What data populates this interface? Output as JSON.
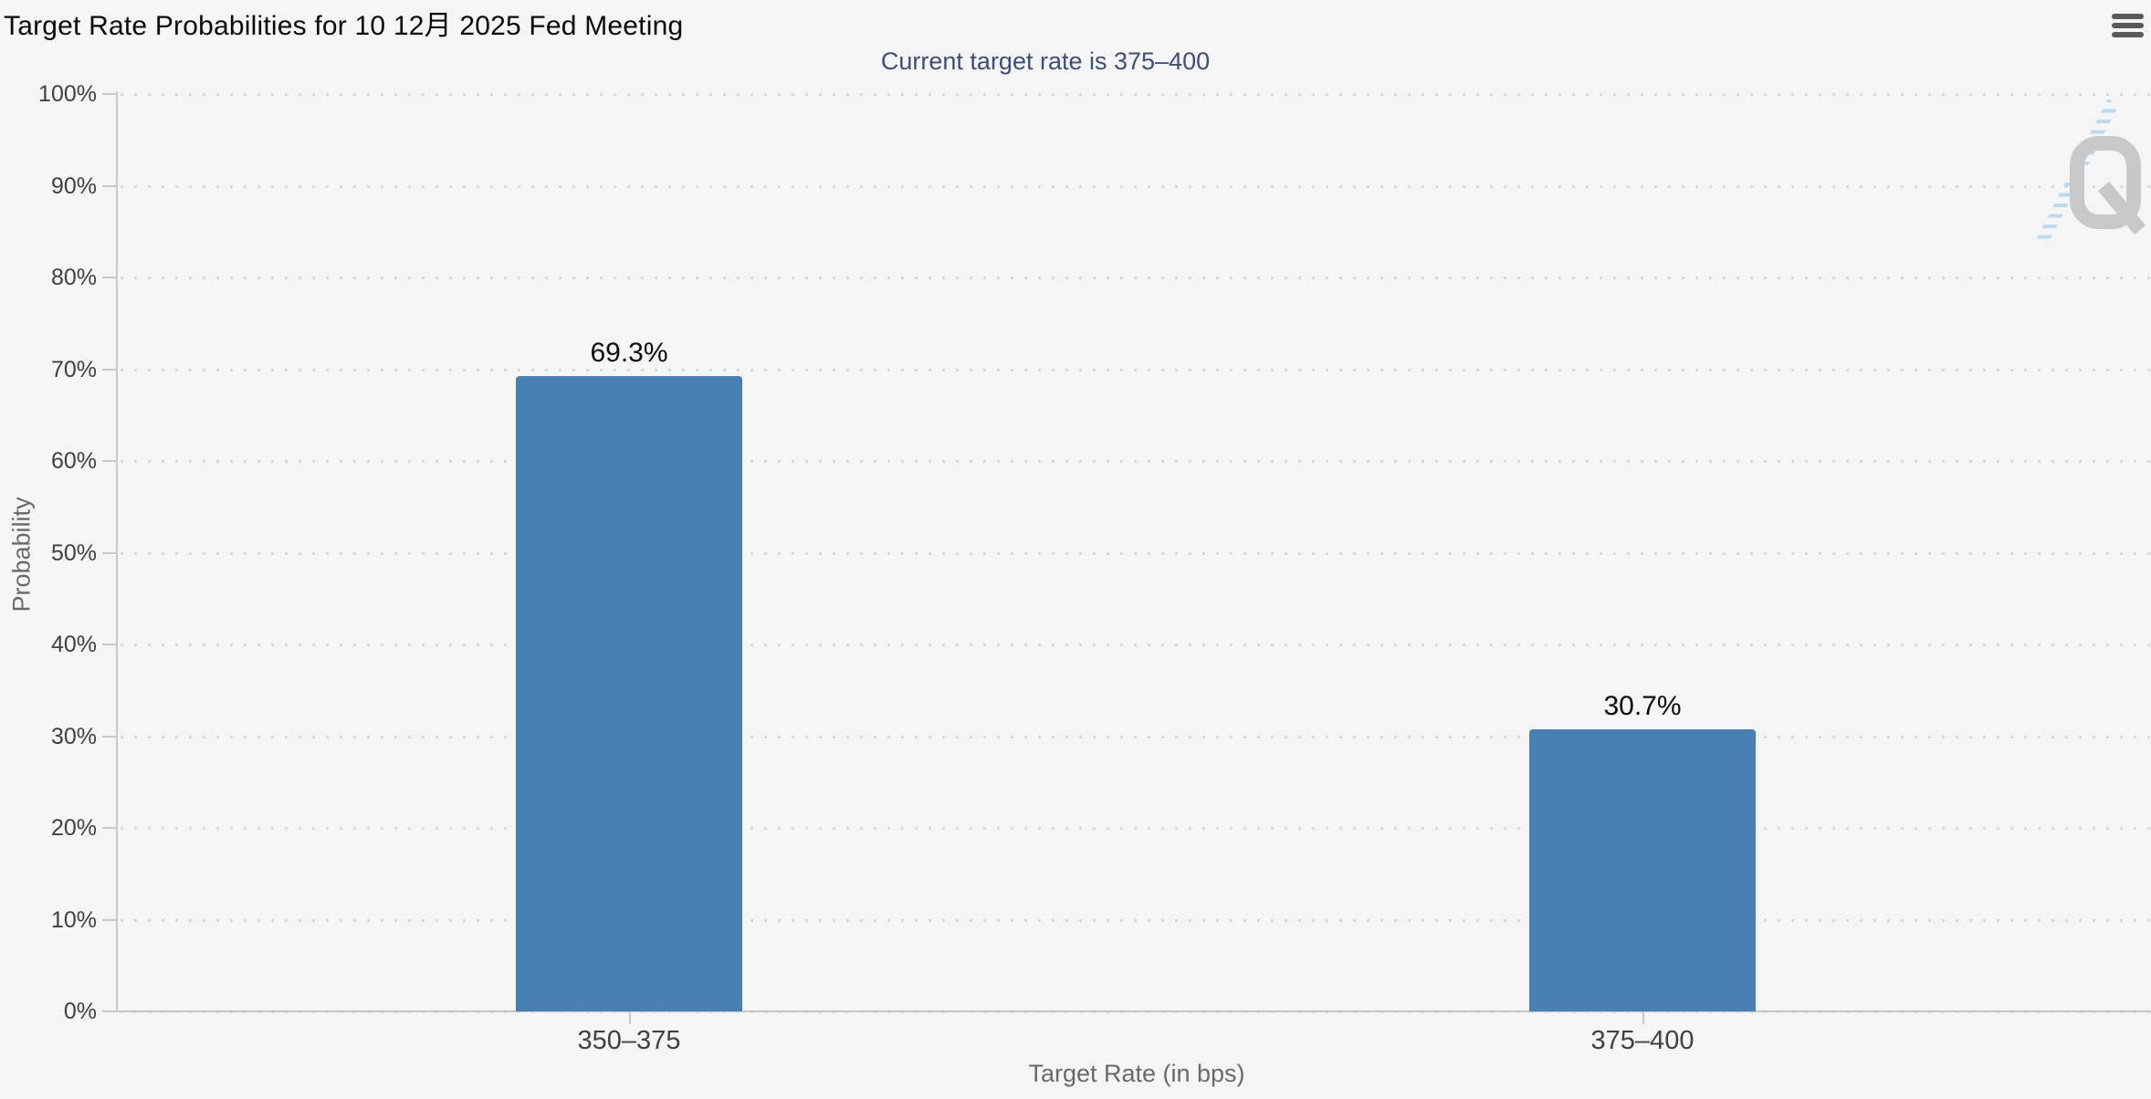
{
  "chart": {
    "title": "Target Rate Probabilities for 10 12月 2025 Fed Meeting",
    "subtitle": "Current target rate is 375–400",
    "menu_icon": "hamburger-menu-icon",
    "watermark_icon": "quikstrike-q-logo",
    "y_axis": {
      "title": "Probability",
      "ticks": [
        "100%",
        "90%",
        "80%",
        "70%",
        "60%",
        "50%",
        "40%",
        "30%",
        "20%",
        "10%",
        "0%"
      ]
    },
    "x_axis": {
      "title": "Target Rate (in bps)"
    },
    "colors": {
      "bar": "#4780b4",
      "subtitle_text": "#3d4e7e",
      "grid_dots": "#d9d9db",
      "axis_line": "#c9c9c9",
      "watermark_gray": "#c7c8c9",
      "watermark_blue": "#b5d8f4",
      "background": "#f5f5f6"
    }
  },
  "chart_data": {
    "type": "bar",
    "title": "Target Rate Probabilities for 10 12月 2025 Fed Meeting",
    "subtitle": "Current target rate is 375–400",
    "categories": [
      "350–375",
      "375–400"
    ],
    "values": [
      69.3,
      30.7
    ],
    "labels": [
      "69.3%",
      "30.7%"
    ],
    "xlabel": "Target Rate (in bps)",
    "ylabel": "Probability",
    "ylim": [
      0,
      100
    ],
    "y_tick_step": 10,
    "grid": "dotted horizontal",
    "legend": "none",
    "bar_color": "#4780b4"
  }
}
